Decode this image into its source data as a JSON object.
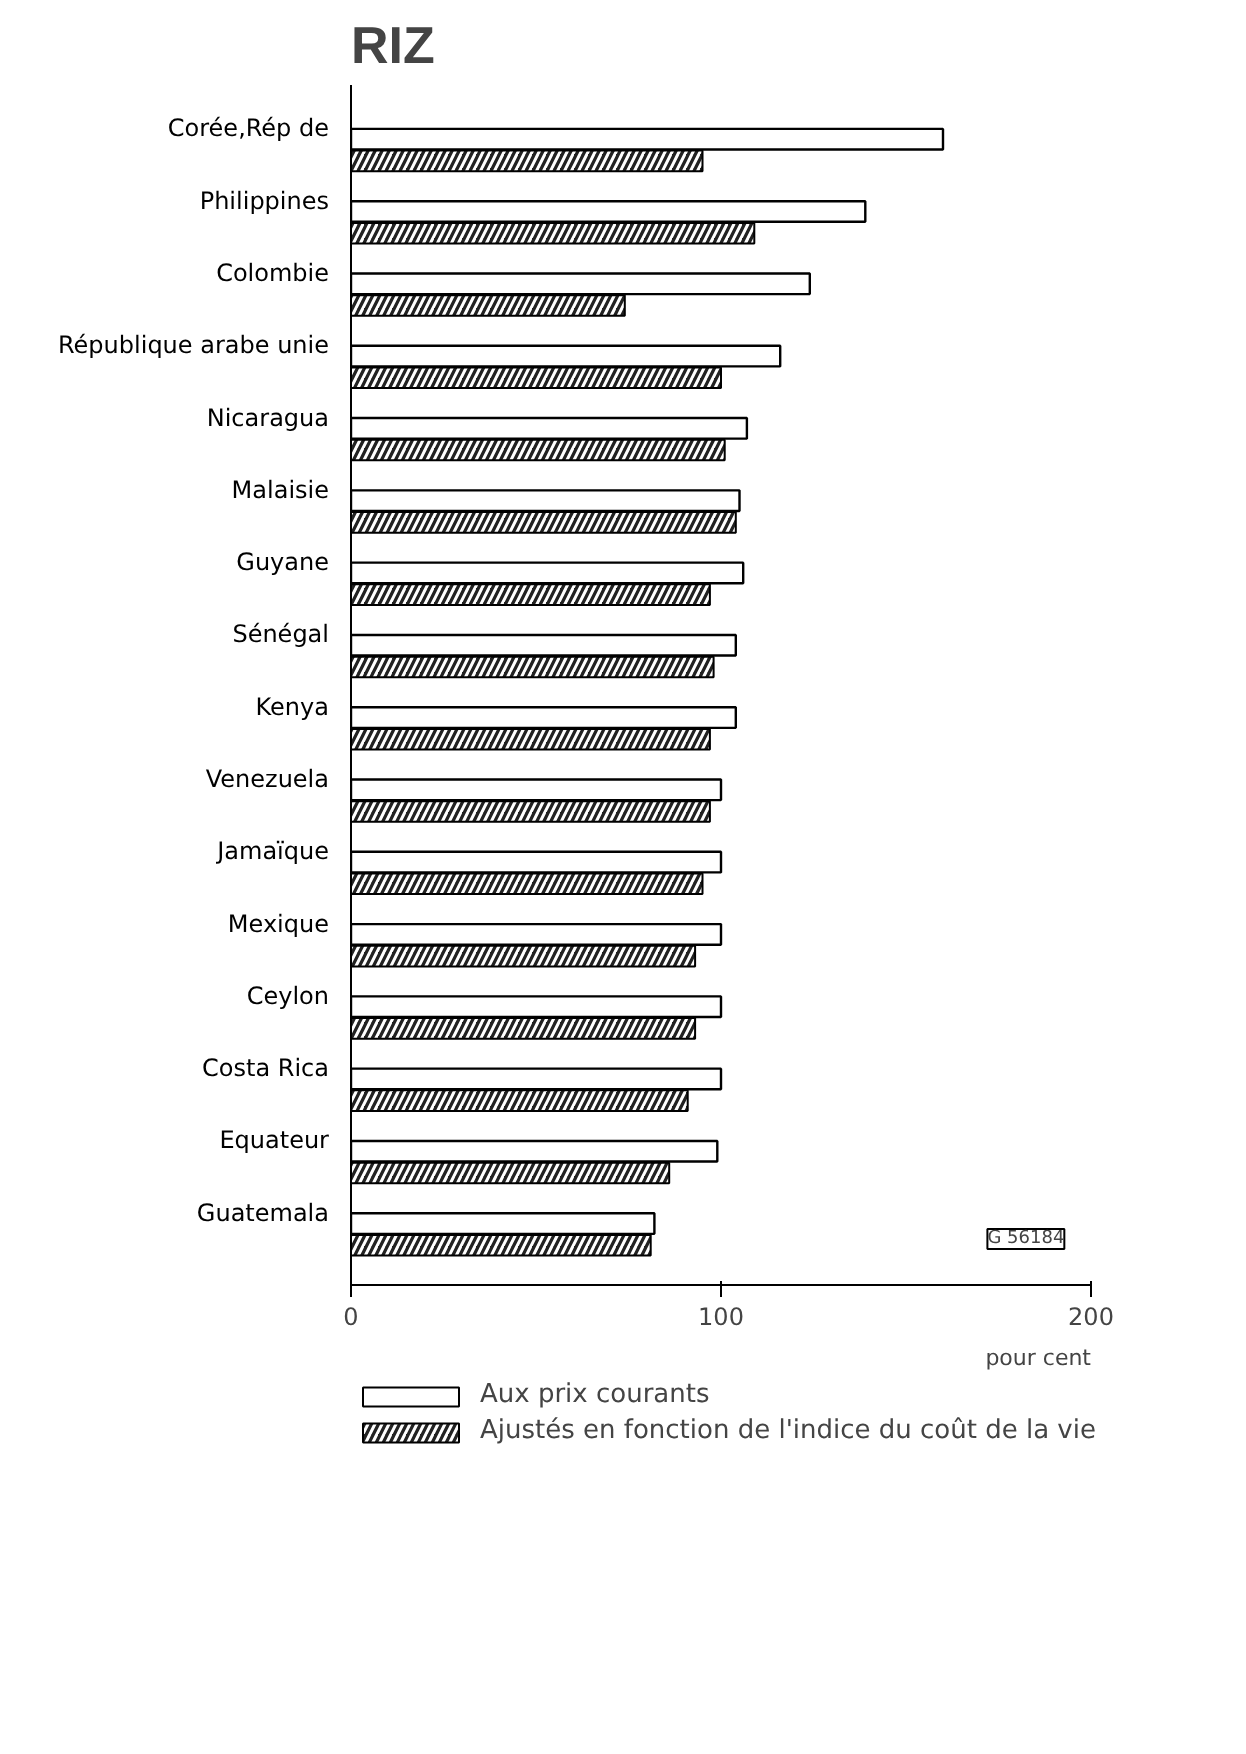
{
  "chart_data": {
    "type": "bar",
    "orientation": "horizontal",
    "title": "RIZ",
    "xlabel": "pour cent",
    "categories": [
      "Corée,Rép de",
      "Philippines",
      "Colombie",
      "République arabe unie",
      "Nicaragua",
      "Malaisie",
      "Guyane",
      "Sénégal",
      "Kenya",
      "Venezuela",
      "Jamaïque",
      "Mexique",
      "Ceylon",
      "Costa Rica",
      "Equateur",
      "Guatemala"
    ],
    "series": [
      {
        "name": "Aux prix courants",
        "color": "#ffffff",
        "values": [
          160,
          139,
          124,
          116,
          107,
          105,
          106,
          104,
          104,
          100,
          100,
          100,
          100,
          100,
          99,
          82
        ]
      },
      {
        "name": "Ajustés en fonction de l'indice du coût de la vie",
        "color": "#222222",
        "values": [
          95,
          109,
          74,
          100,
          101,
          104,
          97,
          98,
          97,
          97,
          95,
          93,
          93,
          91,
          86,
          81
        ]
      }
    ],
    "xlim": [
      0,
      200
    ],
    "xticks": [
      0,
      100,
      200
    ],
    "grid": false,
    "legend": "bottom",
    "annotations": [
      "G 56184"
    ]
  }
}
